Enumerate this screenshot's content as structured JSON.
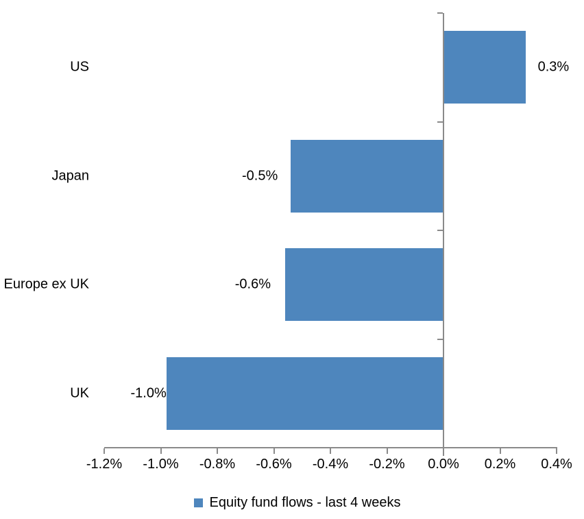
{
  "chart_data": {
    "type": "bar",
    "orientation": "horizontal",
    "title": "",
    "xlabel": "",
    "ylabel": "",
    "categories": [
      "US",
      "Japan",
      "Europe ex UK",
      "UK"
    ],
    "values": [
      0.29,
      -0.54,
      -0.56,
      -0.98
    ],
    "data_labels": [
      "0.3%",
      "-0.5%",
      "-0.6%",
      "-1.0%"
    ],
    "series_name": "Equity fund flows - last 4 weeks",
    "xlim": [
      -1.2,
      0.4
    ],
    "x_tick_step": 0.2,
    "x_tick_labels": [
      "-1.2%",
      "-1.0%",
      "-0.8%",
      "-0.6%",
      "-0.4%",
      "-0.2%",
      "0.0%",
      "0.2%",
      "0.4%"
    ],
    "legend_position": "bottom",
    "grid": false,
    "colors": {
      "bar": "#4e86bd",
      "axis": "#8a8a8a",
      "text": "#000000",
      "background": "#ffffff"
    }
  }
}
